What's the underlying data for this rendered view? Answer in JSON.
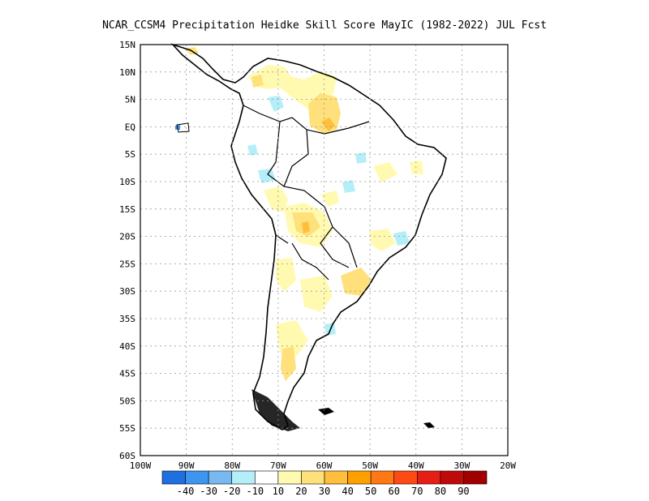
{
  "title": "NCAR_CCSM4  Precipitation Heidke Skill Score MayIC (1982-2022) JUL Fcst",
  "map": {
    "lon_range": [
      -100,
      -20
    ],
    "lat_range": [
      -60,
      15
    ],
    "lat_ticks": [
      "15N",
      "10N",
      "5N",
      "EQ",
      "5S",
      "10S",
      "15S",
      "20S",
      "25S",
      "30S",
      "35S",
      "40S",
      "45S",
      "50S",
      "55S",
      "60S"
    ],
    "lon_ticks": [
      "100W",
      "90W",
      "80W",
      "70W",
      "60W",
      "50W",
      "40W",
      "30W",
      "20W"
    ],
    "gridlines": "dotted"
  },
  "colorbar": {
    "colors": [
      "#1e6fe0",
      "#3c96f0",
      "#78b9f4",
      "#b4eef8",
      "#ffffff",
      "#fffab0",
      "#ffe07a",
      "#ffbe3c",
      "#ffa000",
      "#ff7814",
      "#ff4a14",
      "#e61e14",
      "#c00a0a",
      "#a00000"
    ],
    "labels": [
      "-40",
      "-30",
      "-20",
      "-10",
      "10",
      "20",
      "30",
      "40",
      "50",
      "60",
      "70",
      "80",
      "90"
    ]
  }
}
